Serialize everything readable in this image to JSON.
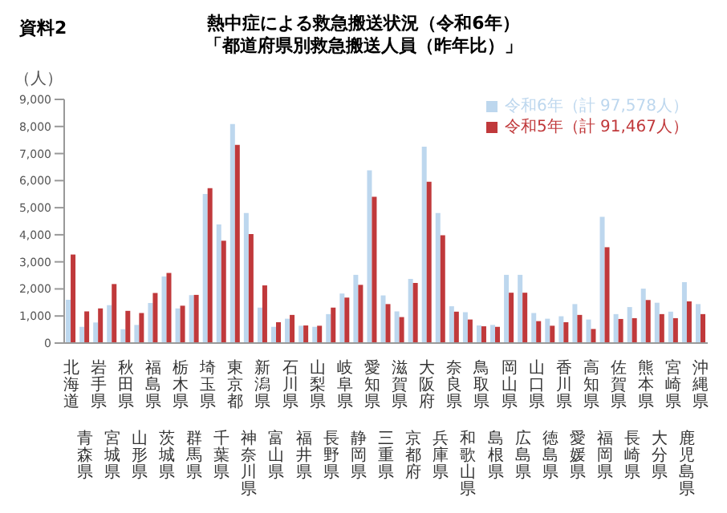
{
  "chart_data": {
    "type": "bar",
    "title": "熱中症による救急搬送状況（令和6年）",
    "subtitle": "「都道府県別救急搬送人員（昨年比）」",
    "annotations": [
      "資料2"
    ],
    "ylabel": "（人）",
    "categories": [
      "北海道",
      "青森県",
      "岩手県",
      "宮城県",
      "秋田県",
      "山形県",
      "福島県",
      "茨城県",
      "栃木県",
      "群馬県",
      "埼玉県",
      "千葉県",
      "東京都",
      "神奈川県",
      "新潟県",
      "富山県",
      "石川県",
      "福井県",
      "山梨県",
      "長野県",
      "岐阜県",
      "静岡県",
      "愛知県",
      "三重県",
      "滋賀県",
      "京都府",
      "大阪府",
      "兵庫県",
      "奈良県",
      "和歌山県",
      "鳥取県",
      "島根県",
      "岡山県",
      "広島県",
      "山口県",
      "徳島県",
      "香川県",
      "愛媛県",
      "高知県",
      "福岡県",
      "佐賀県",
      "長崎県",
      "熊本県",
      "大分県",
      "宮崎県",
      "鹿児島県",
      "沖縄県"
    ],
    "series": [
      {
        "name": "令和6年（計 97,578人）",
        "color": "#bdd7ee",
        "values": [
          1600,
          600,
          760,
          1400,
          510,
          670,
          1480,
          2460,
          1280,
          1770,
          5510,
          4380,
          8090,
          4800,
          1310,
          600,
          900,
          640,
          600,
          1070,
          1830,
          2520,
          6380,
          1760,
          1170,
          2370,
          7250,
          4800,
          1360,
          1140,
          650,
          670,
          2520,
          2520,
          1110,
          900,
          990,
          1440,
          870,
          4660,
          1070,
          1330,
          2010,
          1490,
          1160,
          2250,
          1440
        ]
      },
      {
        "name": "令和5年（計 91,467人）",
        "color": "#c0393b",
        "values": [
          3270,
          1170,
          1280,
          2180,
          1190,
          1110,
          1850,
          2590,
          1380,
          1780,
          5720,
          3780,
          7320,
          4030,
          2130,
          770,
          1040,
          650,
          640,
          1310,
          1680,
          2150,
          5400,
          1440,
          960,
          2220,
          5960,
          3980,
          1160,
          870,
          620,
          600,
          1860,
          1860,
          810,
          640,
          770,
          1040,
          520,
          3540,
          890,
          920,
          1590,
          1070,
          920,
          1540,
          1070
        ]
      }
    ],
    "ylim": [
      0,
      9000
    ],
    "yticks": [
      {
        "value": 0,
        "label": "0"
      },
      {
        "value": 1000,
        "label": "1,000"
      },
      {
        "value": 2000,
        "label": "2,000"
      },
      {
        "value": 3000,
        "label": "3,000"
      },
      {
        "value": 4000,
        "label": "4,000"
      },
      {
        "value": 5000,
        "label": "5,000"
      },
      {
        "value": 6000,
        "label": "6,000"
      },
      {
        "value": 7000,
        "label": "7,000"
      },
      {
        "value": 8000,
        "label": "8,000"
      },
      {
        "value": 9000,
        "label": "9,000"
      }
    ],
    "legend": "top right"
  }
}
